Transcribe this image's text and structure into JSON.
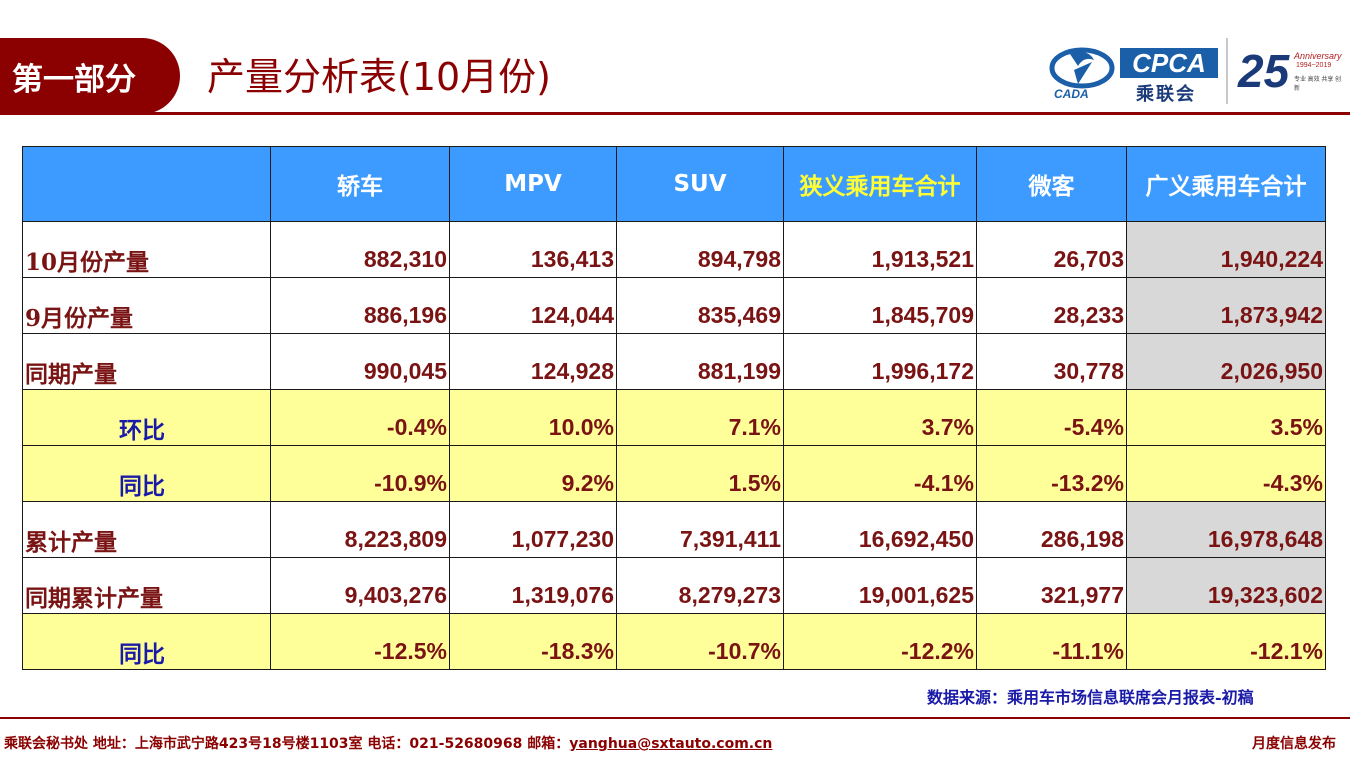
{
  "header": {
    "section_label": "第一部分",
    "page_title": "产量分析表(10月份)",
    "logos": {
      "cada_text": "CADA",
      "cpca_text": "CPCA",
      "cpca_cn": "乘联会",
      "anniversary_number": "25",
      "anniversary_label": "Anniversary",
      "anniversary_years": "1994~2019",
      "anniversary_tagline": "专业 高效 共享 创新"
    },
    "accent_color": "#8b0000"
  },
  "table": {
    "columns": [
      "",
      "轿车",
      "MPV",
      "SUV",
      "狭义乘用车合计",
      "微客",
      "广义乘用车合计"
    ],
    "rows": [
      {
        "label": "10月份产量",
        "values": [
          "882,310",
          "136,413",
          "894,798",
          "1,913,521",
          "26,703",
          "1,940,224"
        ],
        "type": "value"
      },
      {
        "label": "9月份产量",
        "values": [
          "886,196",
          "124,044",
          "835,469",
          "1,845,709",
          "28,233",
          "1,873,942"
        ],
        "type": "value"
      },
      {
        "label": "同期产量",
        "values": [
          "990,045",
          "124,928",
          "881,199",
          "1,996,172",
          "30,778",
          "2,026,950"
        ],
        "type": "value"
      },
      {
        "label": "环比",
        "values": [
          "-0.4%",
          "10.0%",
          "7.1%",
          "3.7%",
          "-5.4%",
          "3.5%"
        ],
        "type": "ratio"
      },
      {
        "label": "同比",
        "values": [
          "-10.9%",
          "9.2%",
          "1.5%",
          "-4.1%",
          "-13.2%",
          "-4.3%"
        ],
        "type": "ratio"
      },
      {
        "label": "累计产量",
        "values": [
          "8,223,809",
          "1,077,230",
          "7,391,411",
          "16,692,450",
          "286,198",
          "16,978,648"
        ],
        "type": "value"
      },
      {
        "label": "同期累计产量",
        "values": [
          "9,403,276",
          "1,319,076",
          "8,279,273",
          "19,001,625",
          "321,977",
          "19,323,602"
        ],
        "type": "value"
      },
      {
        "label": "同比",
        "values": [
          "-12.5%",
          "-18.3%",
          "-10.7%",
          "-12.2%",
          "-11.1%",
          "-12.1%"
        ],
        "type": "ratio"
      }
    ],
    "header_bg": "#3d9bff",
    "ratio_bg": "#ffff99",
    "total_bg": "#d8d8d8"
  },
  "source": "数据来源：乘用车市场信息联席会月报表-初稿",
  "footer": {
    "left_text": "乘联会秘书处   地址：上海市武宁路423号18号楼1103室  电话：021-52680968    邮箱：",
    "email": "yanghua@sxtauto.com.cn",
    "right_text": "月度信息发布"
  }
}
